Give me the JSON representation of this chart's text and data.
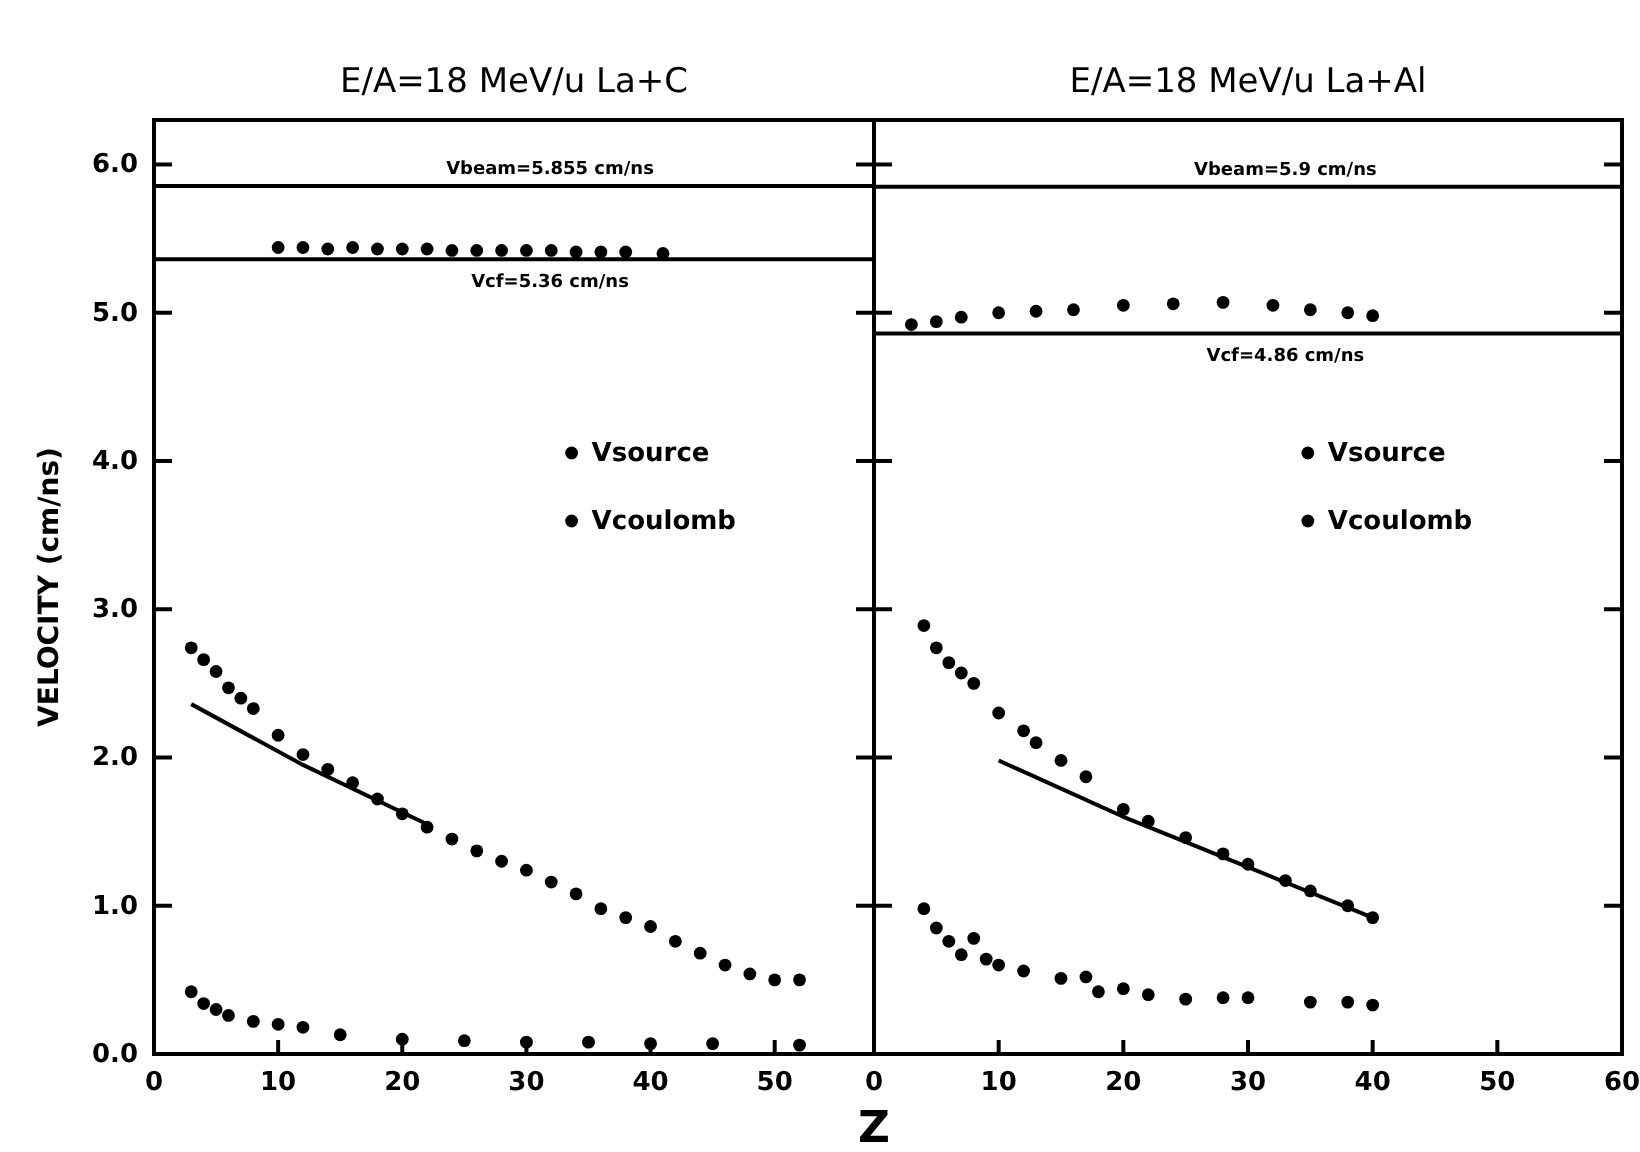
{
  "chart_data": [
    {
      "type": "scatter",
      "title": "E/A=18 MeV/u La+C",
      "ylabel": "VELOCITY (cm/ns)",
      "xlim": [
        0,
        58
      ],
      "xticks": [
        0,
        10,
        20,
        30,
        40,
        50
      ],
      "ylim": [
        0,
        6.3
      ],
      "yticks": [
        {
          "value": 0,
          "label": "0.0"
        },
        {
          "value": 1,
          "label": "1.0"
        },
        {
          "value": 2,
          "label": "2.0"
        },
        {
          "value": 3,
          "label": "3.0"
        },
        {
          "value": 4,
          "label": "4.0"
        },
        {
          "value": 5,
          "label": "5.0"
        },
        {
          "value": 6,
          "label": "6.0"
        }
      ],
      "marker": "circle",
      "legend": "right",
      "grid": false,
      "series": [
        {
          "name": "Vsource",
          "color": "#000000",
          "x": [
            10,
            12,
            14,
            16,
            18,
            20,
            22,
            24,
            26,
            28,
            30,
            32,
            34,
            36,
            38,
            41
          ],
          "values": [
            5.44,
            5.44,
            5.43,
            5.44,
            5.43,
            5.43,
            5.43,
            5.42,
            5.42,
            5.42,
            5.42,
            5.42,
            5.41,
            5.41,
            5.41,
            5.4
          ]
        },
        {
          "name": "Vcoulomb",
          "color": "#000000",
          "x": [
            3,
            4,
            5,
            6,
            7,
            8,
            10,
            12,
            14,
            16,
            18,
            20,
            22,
            24,
            26,
            28,
            30,
            32,
            34,
            36,
            38,
            40,
            42,
            44,
            46,
            48,
            50,
            52
          ],
          "values": [
            2.74,
            2.66,
            2.58,
            2.47,
            2.4,
            2.33,
            2.15,
            2.02,
            1.92,
            1.83,
            1.72,
            1.62,
            1.53,
            1.45,
            1.37,
            1.3,
            1.24,
            1.16,
            1.08,
            0.98,
            0.92,
            0.86,
            0.76,
            0.68,
            0.6,
            0.54,
            0.5,
            0.5
          ]
        },
        {
          "color": "#000000",
          "x": [
            3,
            4,
            5,
            6,
            8,
            10,
            12,
            15,
            20,
            25,
            30,
            35,
            40,
            45,
            52
          ],
          "values": [
            0.42,
            0.34,
            0.3,
            0.26,
            0.22,
            0.2,
            0.18,
            0.13,
            0.1,
            0.09,
            0.08,
            0.08,
            0.07,
            0.07,
            0.06
          ]
        },
        {
          "type": "line",
          "marker": "none",
          "color": "#000000",
          "x": [
            3,
            12,
            22
          ],
          "values": [
            2.36,
            1.95,
            1.55
          ]
        }
      ],
      "ref_lines": [
        {
          "axis": "y",
          "value": 5.855,
          "label": "Vbeam=5.855 cm/ns"
        },
        {
          "axis": "y",
          "value": 5.36,
          "label": "Vcf=5.36 cm/ns"
        }
      ]
    },
    {
      "type": "scatter",
      "title": "E/A=18 MeV/u La+Al",
      "xlabel": "Z",
      "xlim": [
        0,
        60
      ],
      "xticks": [
        0,
        10,
        20,
        30,
        40,
        50,
        60
      ],
      "ylim": [
        0,
        6.3
      ],
      "yticks": [
        0,
        1,
        2,
        3,
        4,
        5,
        6
      ],
      "tick_labels": "x",
      "marker": "circle",
      "legend": "right",
      "grid": false,
      "series": [
        {
          "name": "Vsource",
          "color": "#000000",
          "x": [
            3,
            5,
            7,
            10,
            13,
            16,
            20,
            24,
            28,
            32,
            35,
            38,
            40
          ],
          "values": [
            4.92,
            4.94,
            4.97,
            5.0,
            5.01,
            5.02,
            5.05,
            5.06,
            5.07,
            5.05,
            5.02,
            5.0,
            4.98
          ]
        },
        {
          "name": "Vcoulomb",
          "color": "#000000",
          "x": [
            4,
            5,
            6,
            7,
            8,
            10,
            12,
            13,
            15,
            17,
            20,
            22,
            25,
            28,
            30,
            33,
            35,
            38,
            40
          ],
          "values": [
            2.89,
            2.74,
            2.64,
            2.57,
            2.5,
            2.3,
            2.18,
            2.1,
            1.98,
            1.87,
            1.65,
            1.57,
            1.46,
            1.35,
            1.28,
            1.17,
            1.1,
            1.0,
            0.92
          ]
        },
        {
          "color": "#000000",
          "x": [
            4,
            5,
            6,
            7,
            8,
            9,
            10,
            12,
            15,
            17,
            18,
            20,
            22,
            25,
            28,
            30,
            35,
            38,
            40
          ],
          "values": [
            0.98,
            0.85,
            0.76,
            0.67,
            0.78,
            0.64,
            0.6,
            0.56,
            0.51,
            0.52,
            0.42,
            0.44,
            0.4,
            0.37,
            0.38,
            0.38,
            0.35,
            0.35,
            0.33
          ]
        },
        {
          "type": "line",
          "marker": "none",
          "color": "#000000",
          "x": [
            10,
            20,
            30,
            40
          ],
          "values": [
            1.98,
            1.6,
            1.26,
            0.92
          ]
        }
      ],
      "ref_lines": [
        {
          "axis": "y",
          "value": 5.85,
          "label": "Vbeam=5.9 cm/ns"
        },
        {
          "axis": "y",
          "value": 4.86,
          "label": "Vcf=4.86 cm/ns"
        }
      ]
    }
  ]
}
